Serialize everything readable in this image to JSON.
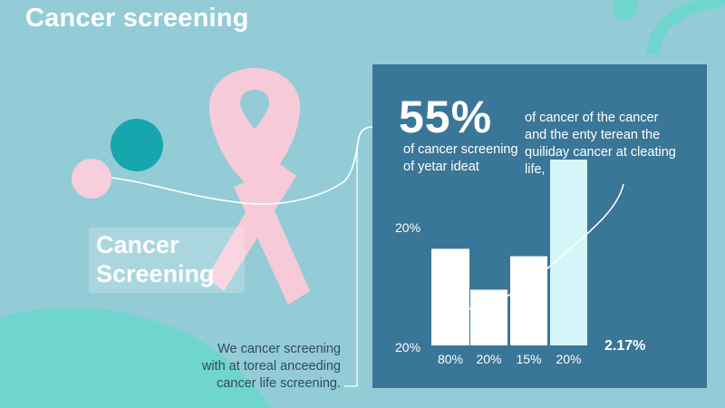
{
  "page": {
    "title": "Cancer screening",
    "label_line1": "Cancer",
    "label_line2": "Screening",
    "caption": [
      "We cancer screening",
      "with at toreal anceeding",
      "cancer life screening."
    ]
  },
  "colors": {
    "background": "#93ccd6",
    "panel": "#3a7697",
    "ribbon": "#f6cad8",
    "teal_circle": "#16a6ad",
    "pink_circle": "#f7cedc",
    "blob": "#6fd5cf",
    "bar": "#ffffff",
    "highlight_bar": "#d4f6f9"
  },
  "icons": [
    "awareness-ribbon-icon"
  ],
  "chart_data": {
    "type": "bar",
    "headline_value": "55%",
    "headline_text": [
      "of cancer screening",
      "of yetar ideat"
    ],
    "side_text": [
      "of cancer of the cancer",
      "and the enty terean the",
      "quiliday cancer at cleating",
      "life,"
    ],
    "y_tick_labels": [
      "20%",
      "20%"
    ],
    "categories": [
      "80%",
      "20%",
      "15%",
      "20%"
    ],
    "values": [
      52,
      30,
      48,
      100
    ],
    "highlight_index": 3,
    "corner_value": "2.17%",
    "trend_line": true
  }
}
